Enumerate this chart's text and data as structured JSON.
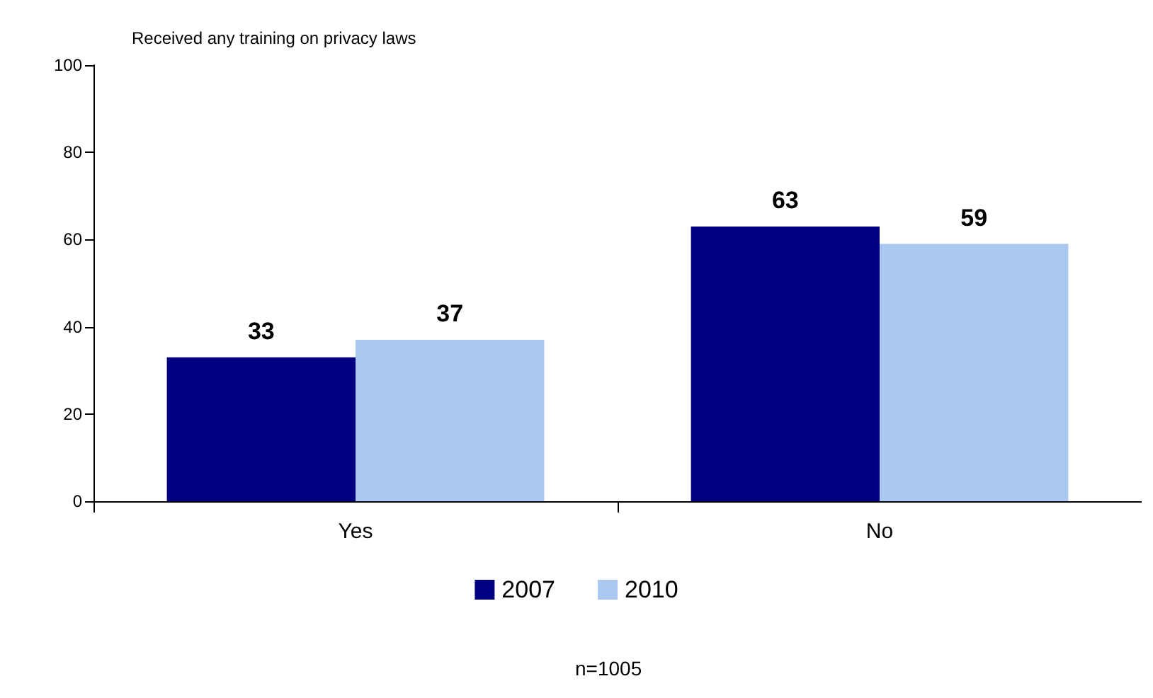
{
  "chart_data": {
    "type": "bar",
    "title": "Received any training on privacy laws",
    "categories": [
      "Yes",
      "No"
    ],
    "series": [
      {
        "name": "2007",
        "color": "#000080",
        "values": [
          33,
          63
        ]
      },
      {
        "name": "2010",
        "color": "#a9c9f0",
        "values": [
          37,
          59
        ]
      }
    ],
    "ylim": [
      0,
      100
    ],
    "yticks": [
      0,
      20,
      40,
      60,
      80,
      100
    ],
    "grid": false,
    "legend": "bottom",
    "data_labels": true,
    "annotations": [
      "n=1005"
    ]
  }
}
